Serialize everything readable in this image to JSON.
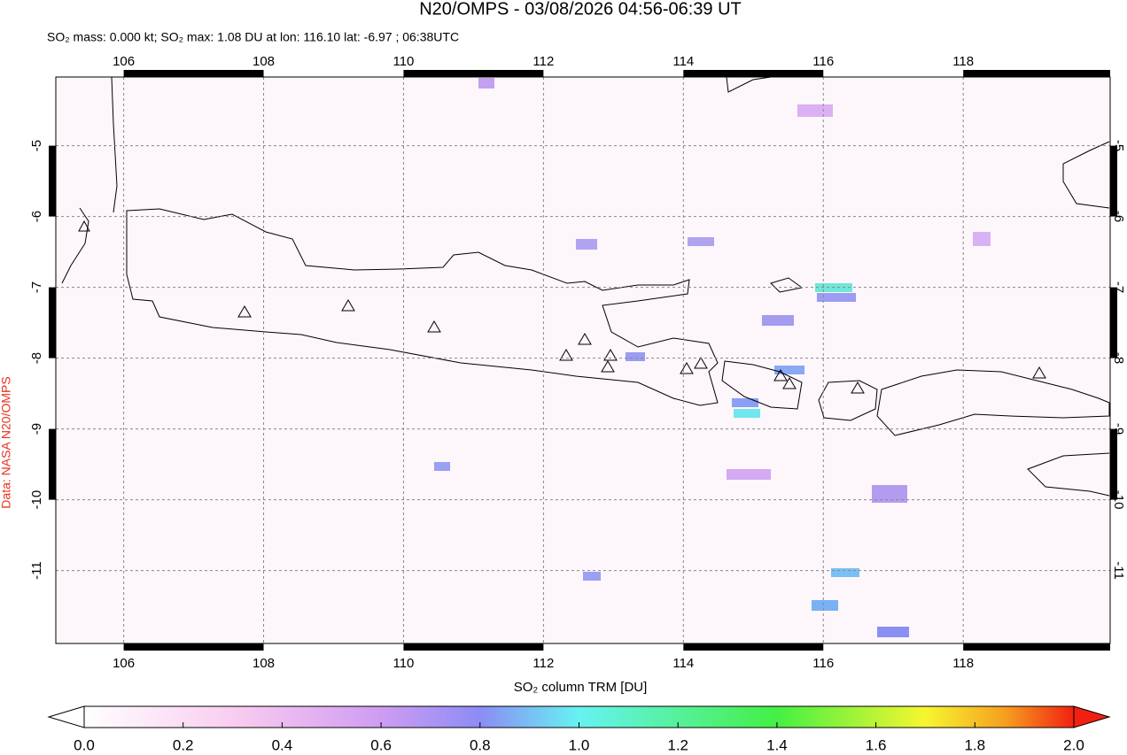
{
  "header": {
    "title": "N20/OMPS - 03/08/2026 04:56-06:39 UT",
    "subtitle": "SO₂ mass: 0.000 kt; SO₂ max: 1.08 DU at lon: 116.10 lat: -6.97 ; 06:38UTC"
  },
  "map": {
    "lonlim": [
      105.03,
      120.1
    ],
    "latlim": [
      -12.03,
      -4.03
    ],
    "lonticks": [
      106,
      108,
      110,
      112,
      114,
      116,
      118
    ],
    "latticks": [
      -5,
      -6,
      -7,
      -8,
      -9,
      -10,
      -11
    ],
    "credit": "Data: NASA N20/OMPS"
  },
  "colorbar": {
    "title": "SO₂ column TRM [DU]",
    "lim": [
      0,
      2
    ],
    "ticks": [
      {
        "value": 0,
        "label": "0.0"
      },
      {
        "value": 0.2,
        "label": "0.2"
      },
      {
        "value": 0.4,
        "label": "0.4"
      },
      {
        "value": 0.6,
        "label": "0.6"
      },
      {
        "value": 0.8,
        "label": "0.8"
      },
      {
        "value": 1,
        "label": "1.0"
      },
      {
        "value": 1.2,
        "label": "1.2"
      },
      {
        "value": 1.4,
        "label": "1.4"
      },
      {
        "value": 1.6,
        "label": "1.6"
      },
      {
        "value": 1.8,
        "label": "1.8"
      },
      {
        "value": 2,
        "label": "2.0"
      }
    ]
  }
}
